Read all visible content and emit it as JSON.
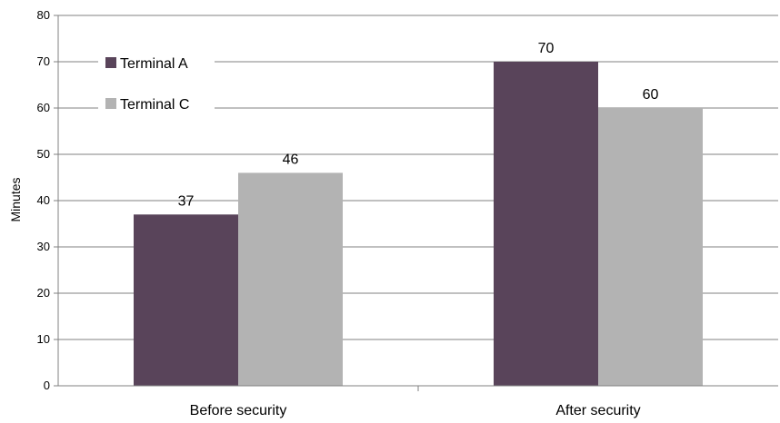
{
  "chart_data": {
    "type": "bar",
    "title": "",
    "xlabel": "",
    "ylabel": "Minutes",
    "categories": [
      "Before security",
      "After security"
    ],
    "series": [
      {
        "name": "Terminal A",
        "values": [
          37,
          70
        ],
        "value_labels": [
          "37",
          "70"
        ],
        "color": "#59445a"
      },
      {
        "name": "Terminal C",
        "values": [
          46,
          60
        ],
        "value_labels": [
          "46",
          "60"
        ],
        "color": "#b3b3b3"
      }
    ],
    "ylim": [
      0,
      80
    ],
    "yticks": [
      "0",
      "10",
      "20",
      "30",
      "40",
      "50",
      "60",
      "70",
      "80"
    ],
    "grid": "horizontal",
    "legend_position": "top-left"
  }
}
